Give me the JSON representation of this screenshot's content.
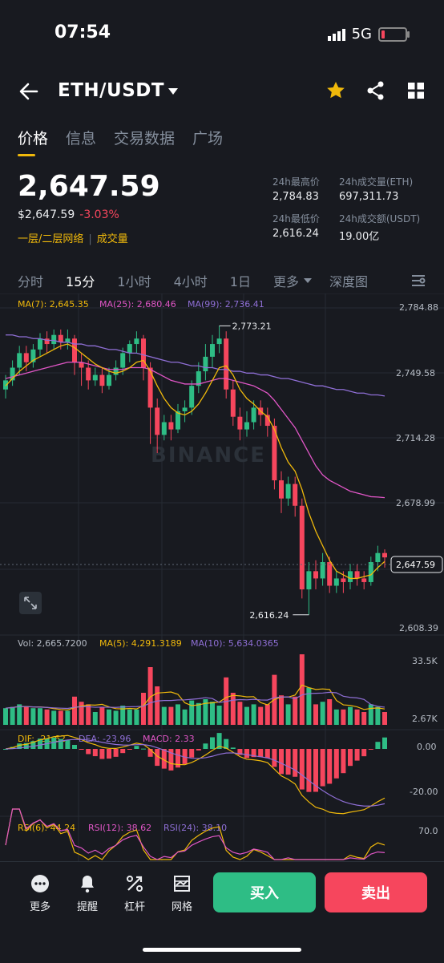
{
  "status": {
    "time": "07:54",
    "network": "5G"
  },
  "header": {
    "pair": "ETH/USDT"
  },
  "tabs": [
    "价格",
    "信息",
    "交易数据",
    "广场"
  ],
  "price": {
    "last": "2,647.59",
    "usd": "$2,647.59",
    "change": "-3.03%",
    "layer_link": "一层/二层网络",
    "volume_link": "成交量"
  },
  "stats": {
    "high_label": "24h最高价",
    "high": "2,784.83",
    "vol_eth_label": "24h成交量(ETH)",
    "vol_eth": "697,311.73",
    "low_label": "24h最低价",
    "low": "2,616.24",
    "vol_usdt_label": "24h成交额(USDT)",
    "vol_usdt": "19.00亿"
  },
  "intervals": [
    "分时",
    "15分",
    "1小时",
    "4小时",
    "1日",
    "更多",
    "深度图"
  ],
  "chart": {
    "ma_legend": {
      "ma7": "MA(7): 2,645.35",
      "ma25": "MA(25): 2,680.46",
      "ma99": "MA(99): 2,736.41"
    },
    "price_axis": [
      "2,784.88",
      "2,749.58",
      "2,714.28",
      "2,678.99",
      "2,647.59",
      "2,608.39"
    ],
    "high_marker": "2,773.21",
    "low_marker": "2,616.24",
    "watermark": "BINANCE",
    "vol_legend": {
      "vol": "Vol: 2,665.7200",
      "ma5": "MA(5): 4,291.3189",
      "ma10": "MA(10): 5,634.0365"
    },
    "vol_axis": [
      "33.5K",
      "2.67K"
    ],
    "macd_legend": {
      "dif": "DIF: -21.62",
      "dea": "DEA: -23.96",
      "macd": "MACD: 2.33"
    },
    "macd_axis": [
      "0.00",
      "-20.00"
    ],
    "rsi_legend": {
      "rsi6": "RSI(6): 44.24",
      "rsi12": "RSI(12): 38.62",
      "rsi24": "RSI(24): 38.10"
    },
    "rsi_axis": [
      "70.0"
    ],
    "colors": {
      "up": "#2ebd85",
      "down": "#f6465d",
      "ma7": "#f0b90b",
      "ma25": "#e056c6",
      "ma99": "#8f6fd6"
    }
  },
  "chart_data": {
    "type": "candlestick",
    "candles": [
      [
        2740,
        2745,
        2735,
        2748
      ],
      [
        2745,
        2752,
        2742,
        2756
      ],
      [
        2752,
        2760,
        2748,
        2764
      ],
      [
        2760,
        2755,
        2750,
        2764
      ],
      [
        2755,
        2762,
        2752,
        2765
      ],
      [
        2762,
        2768,
        2758,
        2771
      ],
      [
        2768,
        2765,
        2760,
        2772
      ],
      [
        2765,
        2770,
        2762,
        2773
      ],
      [
        2770,
        2766,
        2762,
        2773
      ],
      [
        2766,
        2768,
        2762,
        2773
      ],
      [
        2768,
        2755,
        2748,
        2770
      ],
      [
        2755,
        2752,
        2742,
        2760
      ],
      [
        2752,
        2745,
        2740,
        2756
      ],
      [
        2745,
        2748,
        2742,
        2752
      ],
      [
        2748,
        2742,
        2738,
        2752
      ],
      [
        2742,
        2748,
        2740,
        2752
      ],
      [
        2748,
        2752,
        2745,
        2756
      ],
      [
        2752,
        2760,
        2748,
        2763
      ],
      [
        2760,
        2765,
        2755,
        2767
      ],
      [
        2765,
        2768,
        2760,
        2772
      ],
      [
        2768,
        2752,
        2745,
        2770
      ],
      [
        2752,
        2730,
        2710,
        2755
      ],
      [
        2730,
        2715,
        2705,
        2735
      ],
      [
        2715,
        2722,
        2712,
        2726
      ],
      [
        2722,
        2718,
        2712,
        2726
      ],
      [
        2718,
        2728,
        2716,
        2732
      ],
      [
        2728,
        2730,
        2722,
        2734
      ],
      [
        2730,
        2742,
        2726,
        2745
      ],
      [
        2742,
        2750,
        2738,
        2755
      ],
      [
        2750,
        2758,
        2745,
        2765
      ],
      [
        2758,
        2765,
        2752,
        2770
      ],
      [
        2765,
        2768,
        2760,
        2775
      ],
      [
        2768,
        2740,
        2735,
        2772
      ],
      [
        2740,
        2725,
        2720,
        2745
      ],
      [
        2725,
        2718,
        2712,
        2730
      ],
      [
        2718,
        2722,
        2714,
        2728
      ],
      [
        2722,
        2730,
        2718,
        2734
      ],
      [
        2730,
        2726,
        2720,
        2734
      ],
      [
        2726,
        2720,
        2714,
        2730
      ],
      [
        2720,
        2690,
        2685,
        2724
      ],
      [
        2690,
        2680,
        2672,
        2695
      ],
      [
        2680,
        2688,
        2676,
        2692
      ],
      [
        2688,
        2676,
        2670,
        2692
      ],
      [
        2676,
        2630,
        2625,
        2680
      ],
      [
        2630,
        2640,
        2616,
        2645
      ],
      [
        2640,
        2636,
        2630,
        2646
      ],
      [
        2636,
        2645,
        2632,
        2650
      ],
      [
        2645,
        2632,
        2628,
        2648
      ],
      [
        2632,
        2636,
        2628,
        2640
      ],
      [
        2636,
        2634,
        2628,
        2640
      ],
      [
        2634,
        2640,
        2630,
        2644
      ],
      [
        2640,
        2636,
        2632,
        2644
      ],
      [
        2636,
        2634,
        2630,
        2640
      ],
      [
        2634,
        2645,
        2632,
        2648
      ],
      [
        2645,
        2650,
        2640,
        2654
      ],
      [
        2650,
        2647.59,
        2642,
        2652
      ]
    ],
    "ma7": [
      2742,
      2746,
      2750,
      2753,
      2756,
      2758,
      2760,
      2762,
      2764,
      2765,
      2763,
      2760,
      2757,
      2754,
      2752,
      2750,
      2749,
      2750,
      2752,
      2755,
      2756,
      2750,
      2742,
      2735,
      2730,
      2727,
      2726,
      2728,
      2732,
      2738,
      2745,
      2752,
      2753,
      2748,
      2740,
      2735,
      2732,
      2728,
      2725,
      2718,
      2708,
      2700,
      2695,
      2685,
      2672,
      2662,
      2654,
      2646,
      2640,
      2638,
      2636,
      2636,
      2637,
      2638,
      2642,
      2645.35
    ],
    "ma25": [
      2746,
      2747,
      2748,
      2749,
      2750,
      2751,
      2752,
      2753,
      2754,
      2755,
      2755,
      2755,
      2754,
      2753,
      2752,
      2751,
      2751,
      2751,
      2752,
      2752,
      2752,
      2751,
      2749,
      2747,
      2745,
      2744,
      2743,
      2743,
      2743,
      2744,
      2745,
      2746,
      2746,
      2745,
      2744,
      2743,
      2742,
      2740,
      2738,
      2734,
      2729,
      2724,
      2719,
      2712,
      2705,
      2698,
      2693,
      2690,
      2688,
      2686,
      2684,
      2683,
      2682,
      2681,
      2680.8,
      2680.46
    ],
    "ma99": [
      2770,
      2770,
      2769,
      2769,
      2768,
      2768,
      2767,
      2767,
      2766,
      2766,
      2765,
      2765,
      2764,
      2764,
      2763,
      2762,
      2762,
      2761,
      2760,
      2760,
      2759,
      2758,
      2757,
      2756,
      2755,
      2755,
      2754,
      2753,
      2753,
      2752,
      2752,
      2751,
      2751,
      2750,
      2750,
      2749,
      2749,
      2748,
      2748,
      2747,
      2746,
      2746,
      2745,
      2744,
      2743,
      2742,
      2742,
      2741,
      2740,
      2740,
      2739,
      2738,
      2738,
      2737,
      2737,
      2736.41
    ],
    "ylim": [
      2608.39,
      2784.88
    ]
  }
}
